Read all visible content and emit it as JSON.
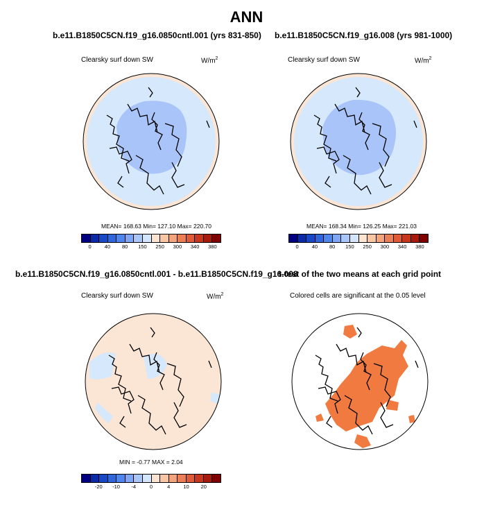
{
  "page_title": "ANN",
  "panels": [
    {
      "case": "b.e11.B1850C5CN.f19_g16.0850cntl.001 (yrs 831-850)",
      "variable": "Clearsky surf down SW",
      "units": "W/m",
      "units_sup": "2",
      "stats": "MEAN= 168.63  Min= 127.10  Max= 220.70",
      "colorbar_labels": [
        "0",
        "40",
        "80",
        "150",
        "250",
        "300",
        "340",
        "380"
      ]
    },
    {
      "case": "b.e11.B1850C5CN.f19_g16.008 (yrs 981-1000)",
      "variable": "Clearsky surf down SW",
      "units": "W/m",
      "units_sup": "2",
      "stats": "MEAN= 168.34  Min= 126.25  Max= 221.03",
      "colorbar_labels": [
        "0",
        "40",
        "80",
        "150",
        "250",
        "300",
        "340",
        "380"
      ]
    },
    {
      "case": "b.e11.B1850C5CN.f19_g16.0850cntl.001 - b.e11.B1850C5CN.f19_g16.008",
      "variable": "Clearsky surf down SW",
      "units": "W/m",
      "units_sup": "2",
      "stats": "MIN =  -0.77 MAX =   2.04",
      "colorbar_labels": [
        "-20",
        "-10",
        "-4",
        "0",
        "4",
        "10",
        "20"
      ]
    },
    {
      "case": "t-test of the two means at each grid point",
      "subtitle": "Colored cells are significant at the 0.05 level"
    }
  ],
  "colors": {
    "colorbar": [
      "#000080",
      "#0a2aa8",
      "#1848c8",
      "#2f66dc",
      "#4f86ee",
      "#7ea6f4",
      "#a8c6fa",
      "#d4e6fd",
      "#fce4d0",
      "#f9c6a4",
      "#f4a47c",
      "#ec7e56",
      "#e05a36",
      "#c8361c",
      "#a81a0c",
      "#800000"
    ],
    "low": "#a9c4f8",
    "mid": "#d6e8fc",
    "high": "#fbe5d4",
    "significant": "#f07a40"
  }
}
